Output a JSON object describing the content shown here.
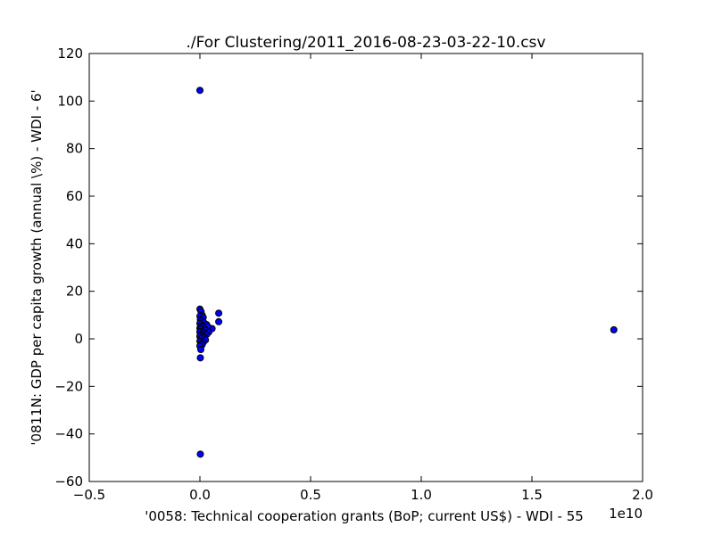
{
  "chart_data": {
    "type": "scatter",
    "title": "./For Clustering/2011_2016-08-23-03-22-10.csv",
    "xlabel": "'0058: Technical cooperation grants  (BoP; current US$) - WDI - 55",
    "ylabel": "'0811N: GDP per capita growth  (annual \\%) - WDI - 6'",
    "x_offset_label": "1e10",
    "xlim": [
      -0.5,
      2.0
    ],
    "ylim": [
      -60,
      120
    ],
    "xticks": [
      -0.5,
      0.0,
      0.5,
      1.0,
      1.5,
      2.0
    ],
    "xtick_labels": [
      "−0.5",
      "0.0",
      "0.5",
      "1.0",
      "1.5",
      "2.0"
    ],
    "yticks": [
      -60,
      -40,
      -20,
      0,
      20,
      40,
      60,
      80,
      100,
      120
    ],
    "ytick_labels": [
      "−60",
      "−40",
      "−20",
      "0",
      "20",
      "40",
      "60",
      "80",
      "100",
      "120"
    ],
    "grid": false,
    "marker_color": "#0000ff",
    "marker_edge": "#000000",
    "points": [
      {
        "x": 0.0,
        "y": 104.5
      },
      {
        "x": 0.002,
        "y": -48.5
      },
      {
        "x": 1.87,
        "y": 3.8
      },
      {
        "x": 0.085,
        "y": 10.8
      },
      {
        "x": 0.085,
        "y": 7.2
      },
      {
        "x": 0.055,
        "y": 4.3
      },
      {
        "x": 0.0,
        "y": 12.5
      },
      {
        "x": 0.005,
        "y": 11.5
      },
      {
        "x": 0.01,
        "y": 10.0
      },
      {
        "x": 0.0,
        "y": 9.5
      },
      {
        "x": 0.015,
        "y": 9.0
      },
      {
        "x": 0.002,
        "y": 8.0
      },
      {
        "x": 0.008,
        "y": 7.5
      },
      {
        "x": 0.018,
        "y": 6.8
      },
      {
        "x": 0.0,
        "y": 6.5
      },
      {
        "x": 0.03,
        "y": 6.0
      },
      {
        "x": 0.006,
        "y": 5.5
      },
      {
        "x": 0.012,
        "y": 5.0
      },
      {
        "x": 0.035,
        "y": 5.2
      },
      {
        "x": 0.0,
        "y": 4.5
      },
      {
        "x": 0.02,
        "y": 4.2
      },
      {
        "x": 0.004,
        "y": 4.0
      },
      {
        "x": 0.025,
        "y": 3.5
      },
      {
        "x": 0.01,
        "y": 3.2
      },
      {
        "x": 0.0,
        "y": 3.0
      },
      {
        "x": 0.04,
        "y": 2.8
      },
      {
        "x": 0.015,
        "y": 2.5
      },
      {
        "x": 0.002,
        "y": 2.0
      },
      {
        "x": 0.03,
        "y": 1.8
      },
      {
        "x": 0.008,
        "y": 1.5
      },
      {
        "x": 0.0,
        "y": 1.0
      },
      {
        "x": 0.02,
        "y": 0.8
      },
      {
        "x": 0.012,
        "y": 0.5
      },
      {
        "x": 0.004,
        "y": 0.0
      },
      {
        "x": 0.025,
        "y": -0.5
      },
      {
        "x": 0.0,
        "y": -1.0
      },
      {
        "x": 0.015,
        "y": -1.5
      },
      {
        "x": 0.006,
        "y": -2.0
      },
      {
        "x": 0.01,
        "y": -2.5
      },
      {
        "x": 0.0,
        "y": -3.0
      },
      {
        "x": 0.004,
        "y": -4.5
      },
      {
        "x": 0.002,
        "y": -8.0
      }
    ]
  }
}
